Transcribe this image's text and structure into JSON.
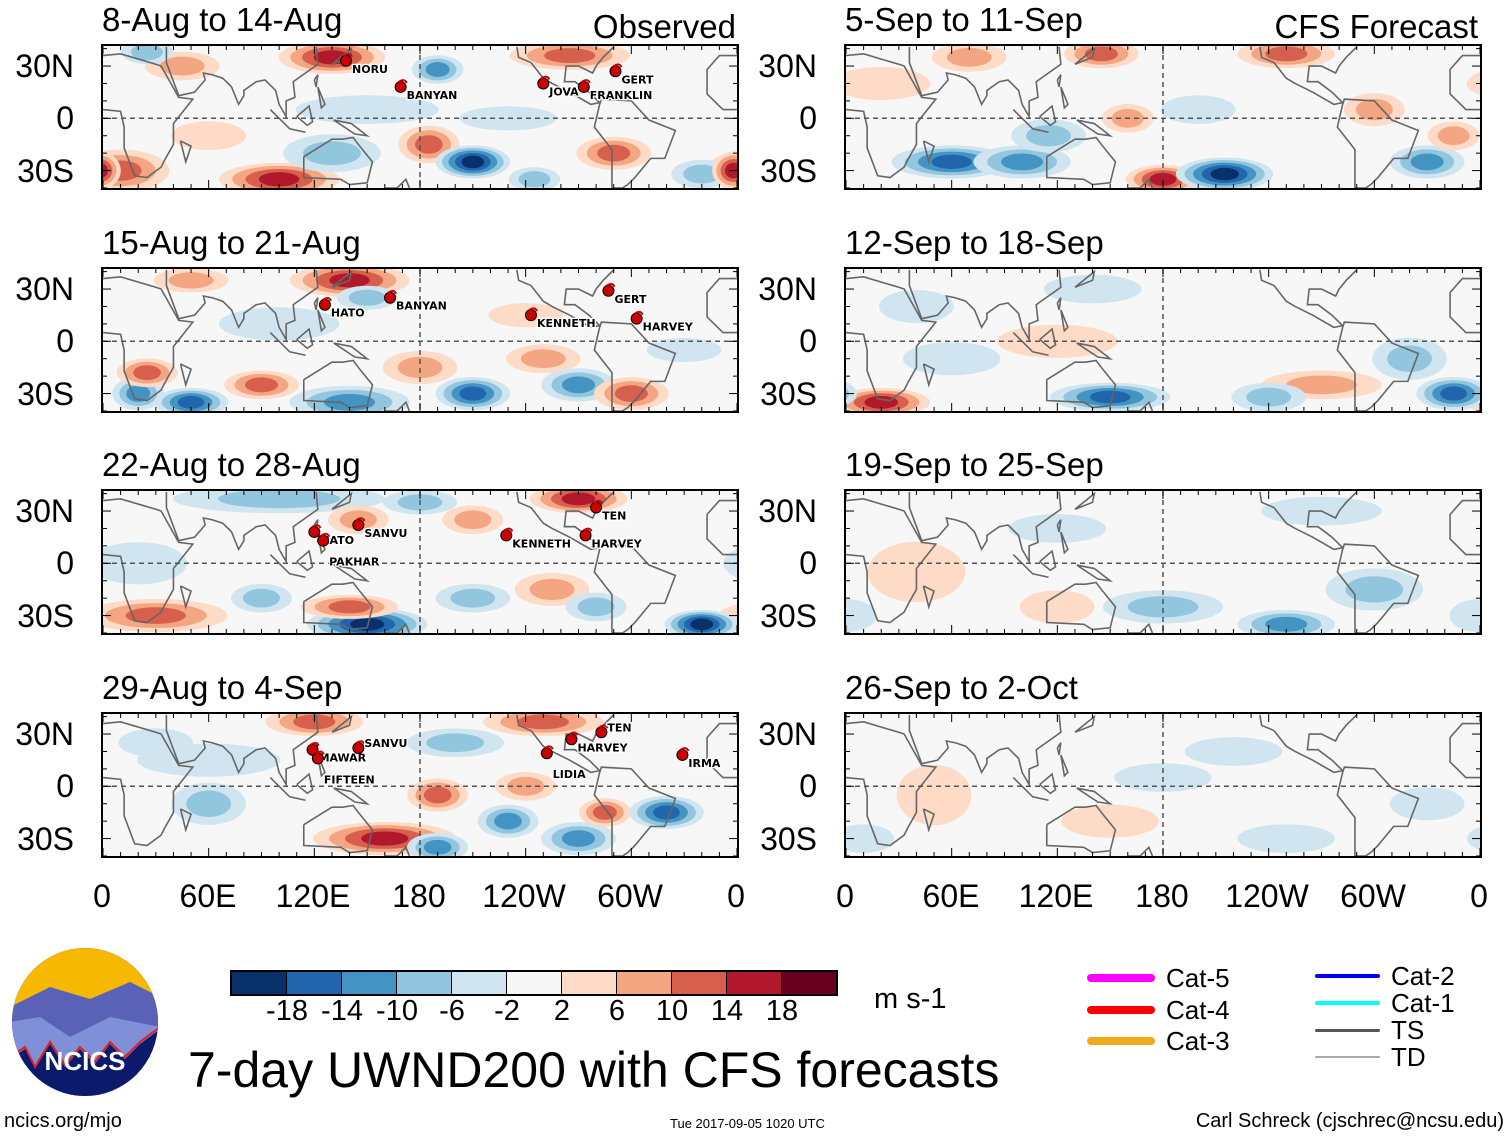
{
  "main_title": "7-day UWND200 with CFS forecasts",
  "footer": {
    "left": "ncics.org/mjo",
    "center": "Tue 2017-09-05 1020 UTC",
    "right": "Carl Schreck (cjschrec@ncsu.edu)"
  },
  "logo_text": "NCICS",
  "column_tags": {
    "observed": "Observed",
    "forecast": "CFS Forecast"
  },
  "lat_labels": [
    "30N",
    "0",
    "30S"
  ],
  "lon_labels": [
    "0",
    "60E",
    "120E",
    "180",
    "120W",
    "60W",
    "0"
  ],
  "colorbar": {
    "units": "m s-1",
    "levels": [
      "-18",
      "-14",
      "-10",
      "-6",
      "-2",
      "2",
      "6",
      "10",
      "14",
      "18"
    ],
    "colors": [
      "#08306b",
      "#2166ac",
      "#4393c3",
      "#92c5de",
      "#d1e5f0",
      "#f7f7f7",
      "#fddbc7",
      "#f4a582",
      "#d6604d",
      "#b2182b",
      "#67001f"
    ]
  },
  "legend": [
    {
      "label": "Cat-5",
      "color": "#ff00ff"
    },
    {
      "label": "Cat-4",
      "color": "#ff0000"
    },
    {
      "label": "Cat-3",
      "color": "#f2a91c"
    },
    {
      "label": "Cat-2",
      "color": "#0000ff"
    },
    {
      "label": "Cat-1",
      "color": "#00ffff"
    },
    {
      "label": "TS",
      "color": "#555555"
    },
    {
      "label": "TD",
      "color": "#aaaaaa"
    }
  ],
  "chart_data": {
    "type": "heatmap",
    "variable": "200-hPa zonal wind anomaly",
    "units": "m s-1",
    "lon_range": [
      0,
      360
    ],
    "lat_range": [
      -40,
      40
    ],
    "panels": [
      {
        "title": "8-Aug to 14-Aug",
        "source": "Observed",
        "storms": [
          {
            "name": "NORU",
            "lon": 138,
            "lat": 33
          },
          {
            "name": "BANYAN",
            "lon": 169,
            "lat": 18
          },
          {
            "name": "JOVA",
            "lon": 250,
            "lat": 20
          },
          {
            "name": "GERT",
            "lon": 291,
            "lat": 27
          },
          {
            "name": "FRANKLIN",
            "lon": 273,
            "lat": 18
          }
        ]
      },
      {
        "title": "15-Aug to 21-Aug",
        "source": "Observed",
        "storms": [
          {
            "name": "HATO",
            "lon": 126,
            "lat": 21
          },
          {
            "name": "BANYAN",
            "lon": 163,
            "lat": 25
          },
          {
            "name": "GERT",
            "lon": 287,
            "lat": 29
          },
          {
            "name": "KENNETH",
            "lon": 243,
            "lat": 15
          },
          {
            "name": "HARVEY",
            "lon": 303,
            "lat": 13
          }
        ]
      },
      {
        "title": "22-Aug to 28-Aug",
        "source": "Observed",
        "storms": [
          {
            "name": "HATO",
            "lon": 120,
            "lat": 18
          },
          {
            "name": "SANVU",
            "lon": 145,
            "lat": 22
          },
          {
            "name": "PAKHAR",
            "lon": 125,
            "lat": 13
          },
          {
            "name": "KENNETH",
            "lon": 229,
            "lat": 16
          },
          {
            "name": "TEN",
            "lon": 280,
            "lat": 32
          },
          {
            "name": "HARVEY",
            "lon": 274,
            "lat": 16
          }
        ]
      },
      {
        "title": "29-Aug to 4-Sep",
        "source": "Observed",
        "storms": [
          {
            "name": "MAWAR",
            "lon": 119,
            "lat": 21
          },
          {
            "name": "SANVU",
            "lon": 145,
            "lat": 22
          },
          {
            "name": "FIFTEEN",
            "lon": 122,
            "lat": 16
          },
          {
            "name": "HARVEY",
            "lon": 266,
            "lat": 27
          },
          {
            "name": "TEN",
            "lon": 283,
            "lat": 31
          },
          {
            "name": "LIDIA",
            "lon": 252,
            "lat": 19
          },
          {
            "name": "IRMA",
            "lon": 329,
            "lat": 18
          }
        ]
      },
      {
        "title": "5-Sep to 11-Sep",
        "source": "CFS Forecast",
        "storms": []
      },
      {
        "title": "12-Sep to 18-Sep",
        "source": "CFS Forecast",
        "storms": []
      },
      {
        "title": "19-Sep to 25-Sep",
        "source": "CFS Forecast",
        "storms": []
      },
      {
        "title": "26-Sep to 2-Oct",
        "source": "CFS Forecast",
        "storms": []
      }
    ]
  }
}
